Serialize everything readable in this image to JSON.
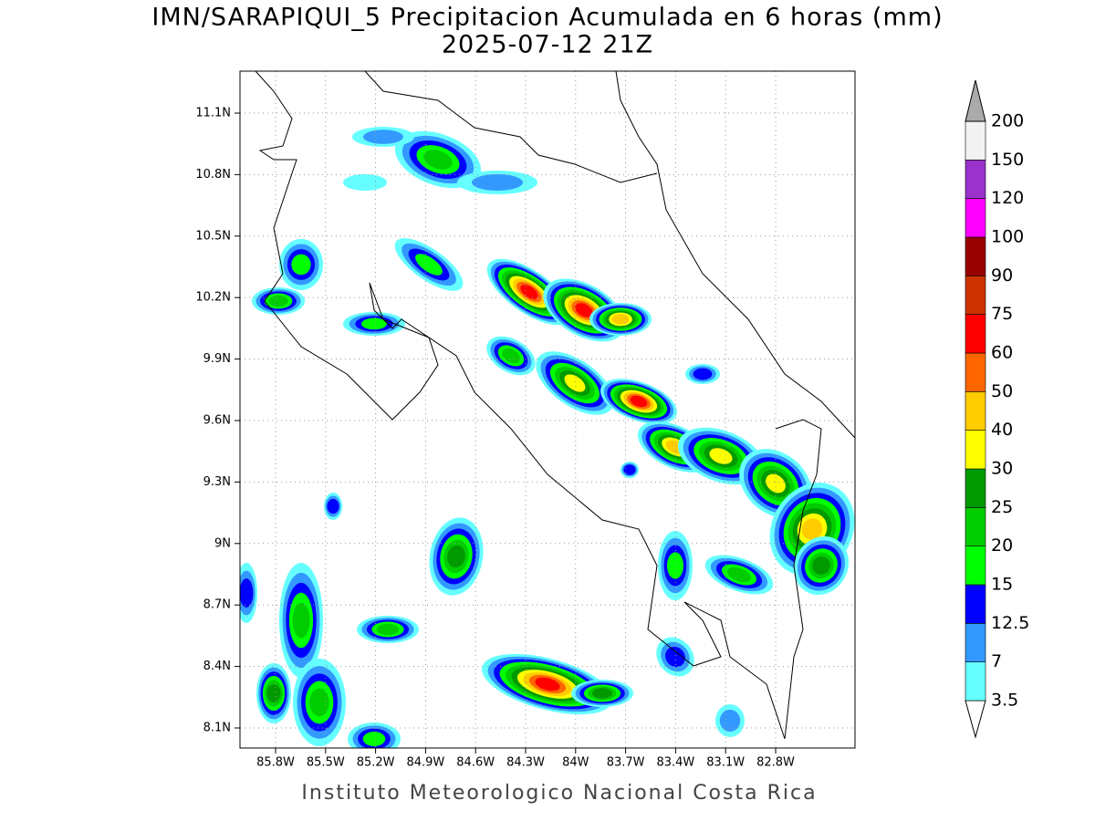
{
  "title": [
    "IMN/SARAPIQUI_5 Precipitacion Acumulada en 6 horas (mm)",
    "2025-07-12 21Z"
  ],
  "lat_labels": [
    "11.1N",
    "10.8N",
    "10.5N",
    "10.2N",
    "9.9N",
    "9.6N",
    "9.3N",
    "9N",
    "8.7N",
    "8.4N",
    "8.1N"
  ],
  "lon_labels": [
    "85.8W",
    "85.5W",
    "85.2W",
    "84.9W",
    "84.6W",
    "84.3W",
    "84W",
    "83.7W",
    "83.4W",
    "83.1W",
    "82.8W"
  ],
  "colorbar": {
    "labels": [
      "3.5",
      "7",
      "12.5",
      "15",
      "20",
      "25",
      "30",
      "40",
      "50",
      "60",
      "75",
      "90",
      "100",
      "120",
      "150",
      "200"
    ],
    "colors": [
      "#ffffff",
      "#66ffff",
      "#3399ff",
      "#0000ff",
      "#00ff00",
      "#00cc00",
      "#009900",
      "#ffff00",
      "#ffcc00",
      "#ff6600",
      "#ff0000",
      "#cc3300",
      "#990000",
      "#ff00ff",
      "#9933cc",
      "#f2f2f2",
      "#aaaaaa"
    ]
  },
  "footer": "Instituto Meteorologico Nacional Costa Rica"
}
